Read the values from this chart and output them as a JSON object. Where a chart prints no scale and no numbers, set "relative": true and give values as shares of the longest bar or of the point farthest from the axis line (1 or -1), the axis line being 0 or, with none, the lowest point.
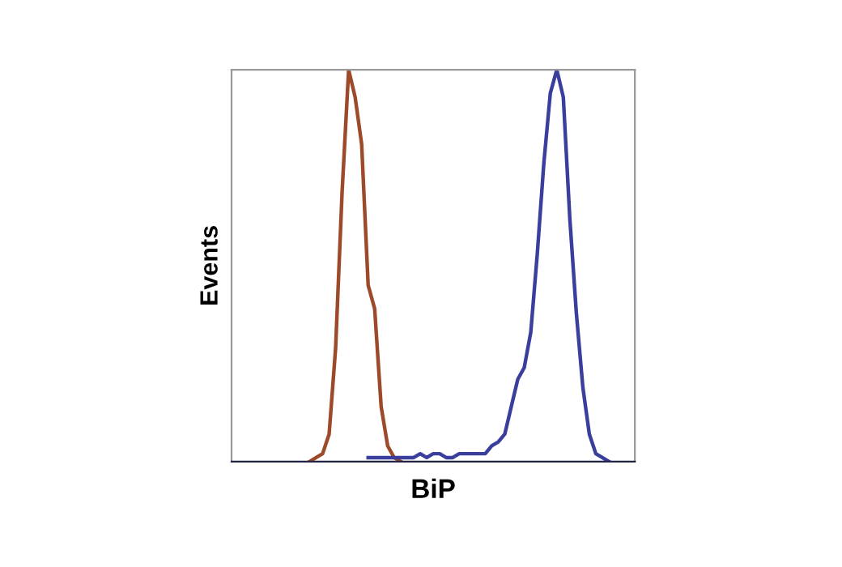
{
  "chart_data": {
    "type": "line",
    "relative": true,
    "xlabel": "BiP",
    "ylabel": "Events",
    "grid": false,
    "marker": "none",
    "line_style": "solid",
    "categories": [
      null,
      null,
      null,
      null,
      null,
      null,
      null,
      null,
      null,
      null,
      null,
      null,
      null,
      null,
      null,
      null,
      null,
      null,
      null,
      null,
      null,
      null,
      null,
      null,
      null,
      null,
      null,
      null,
      null,
      null,
      null,
      null,
      null,
      null,
      null,
      null,
      null,
      null,
      null,
      null,
      null,
      null,
      null,
      null,
      null,
      null,
      null,
      null,
      null,
      null,
      null,
      null,
      null,
      null,
      null,
      null,
      null,
      null,
      null,
      null,
      null,
      null,
      null
    ],
    "series": [
      {
        "color": "#9c4a2a",
        "values": [
          null,
          null,
          null,
          null,
          null,
          null,
          null,
          null,
          null,
          null,
          null,
          null,
          0,
          0.01,
          0.02,
          0.07,
          0.29,
          0.69,
          1.0,
          0.93,
          0.81,
          0.45,
          0.39,
          0.14,
          0.04,
          0.01,
          0,
          null,
          null,
          null,
          null,
          null,
          null,
          null,
          null,
          null,
          null,
          null,
          null,
          null,
          null,
          null,
          null,
          null,
          null,
          null,
          null,
          null,
          null,
          null,
          null,
          null,
          null,
          null,
          null,
          null,
          null,
          null,
          null,
          null,
          null,
          null,
          null
        ]
      },
      {
        "color": "#3a3f9e",
        "values": [
          null,
          null,
          null,
          null,
          null,
          null,
          null,
          null,
          null,
          null,
          null,
          null,
          null,
          null,
          null,
          null,
          null,
          null,
          null,
          null,
          null,
          0.01,
          0.01,
          0.01,
          0.01,
          0.01,
          0.01,
          0.01,
          0.01,
          0.02,
          0.01,
          0.02,
          0.02,
          0.01,
          0.01,
          0.02,
          0.02,
          0.02,
          0.02,
          0.02,
          0.04,
          0.05,
          0.07,
          0.14,
          0.21,
          0.24,
          0.33,
          0.53,
          0.76,
          0.94,
          1.0,
          0.93,
          0.62,
          0.38,
          0.19,
          0.07,
          0.02,
          0.01,
          0,
          null,
          null,
          null,
          null
        ]
      }
    ]
  }
}
